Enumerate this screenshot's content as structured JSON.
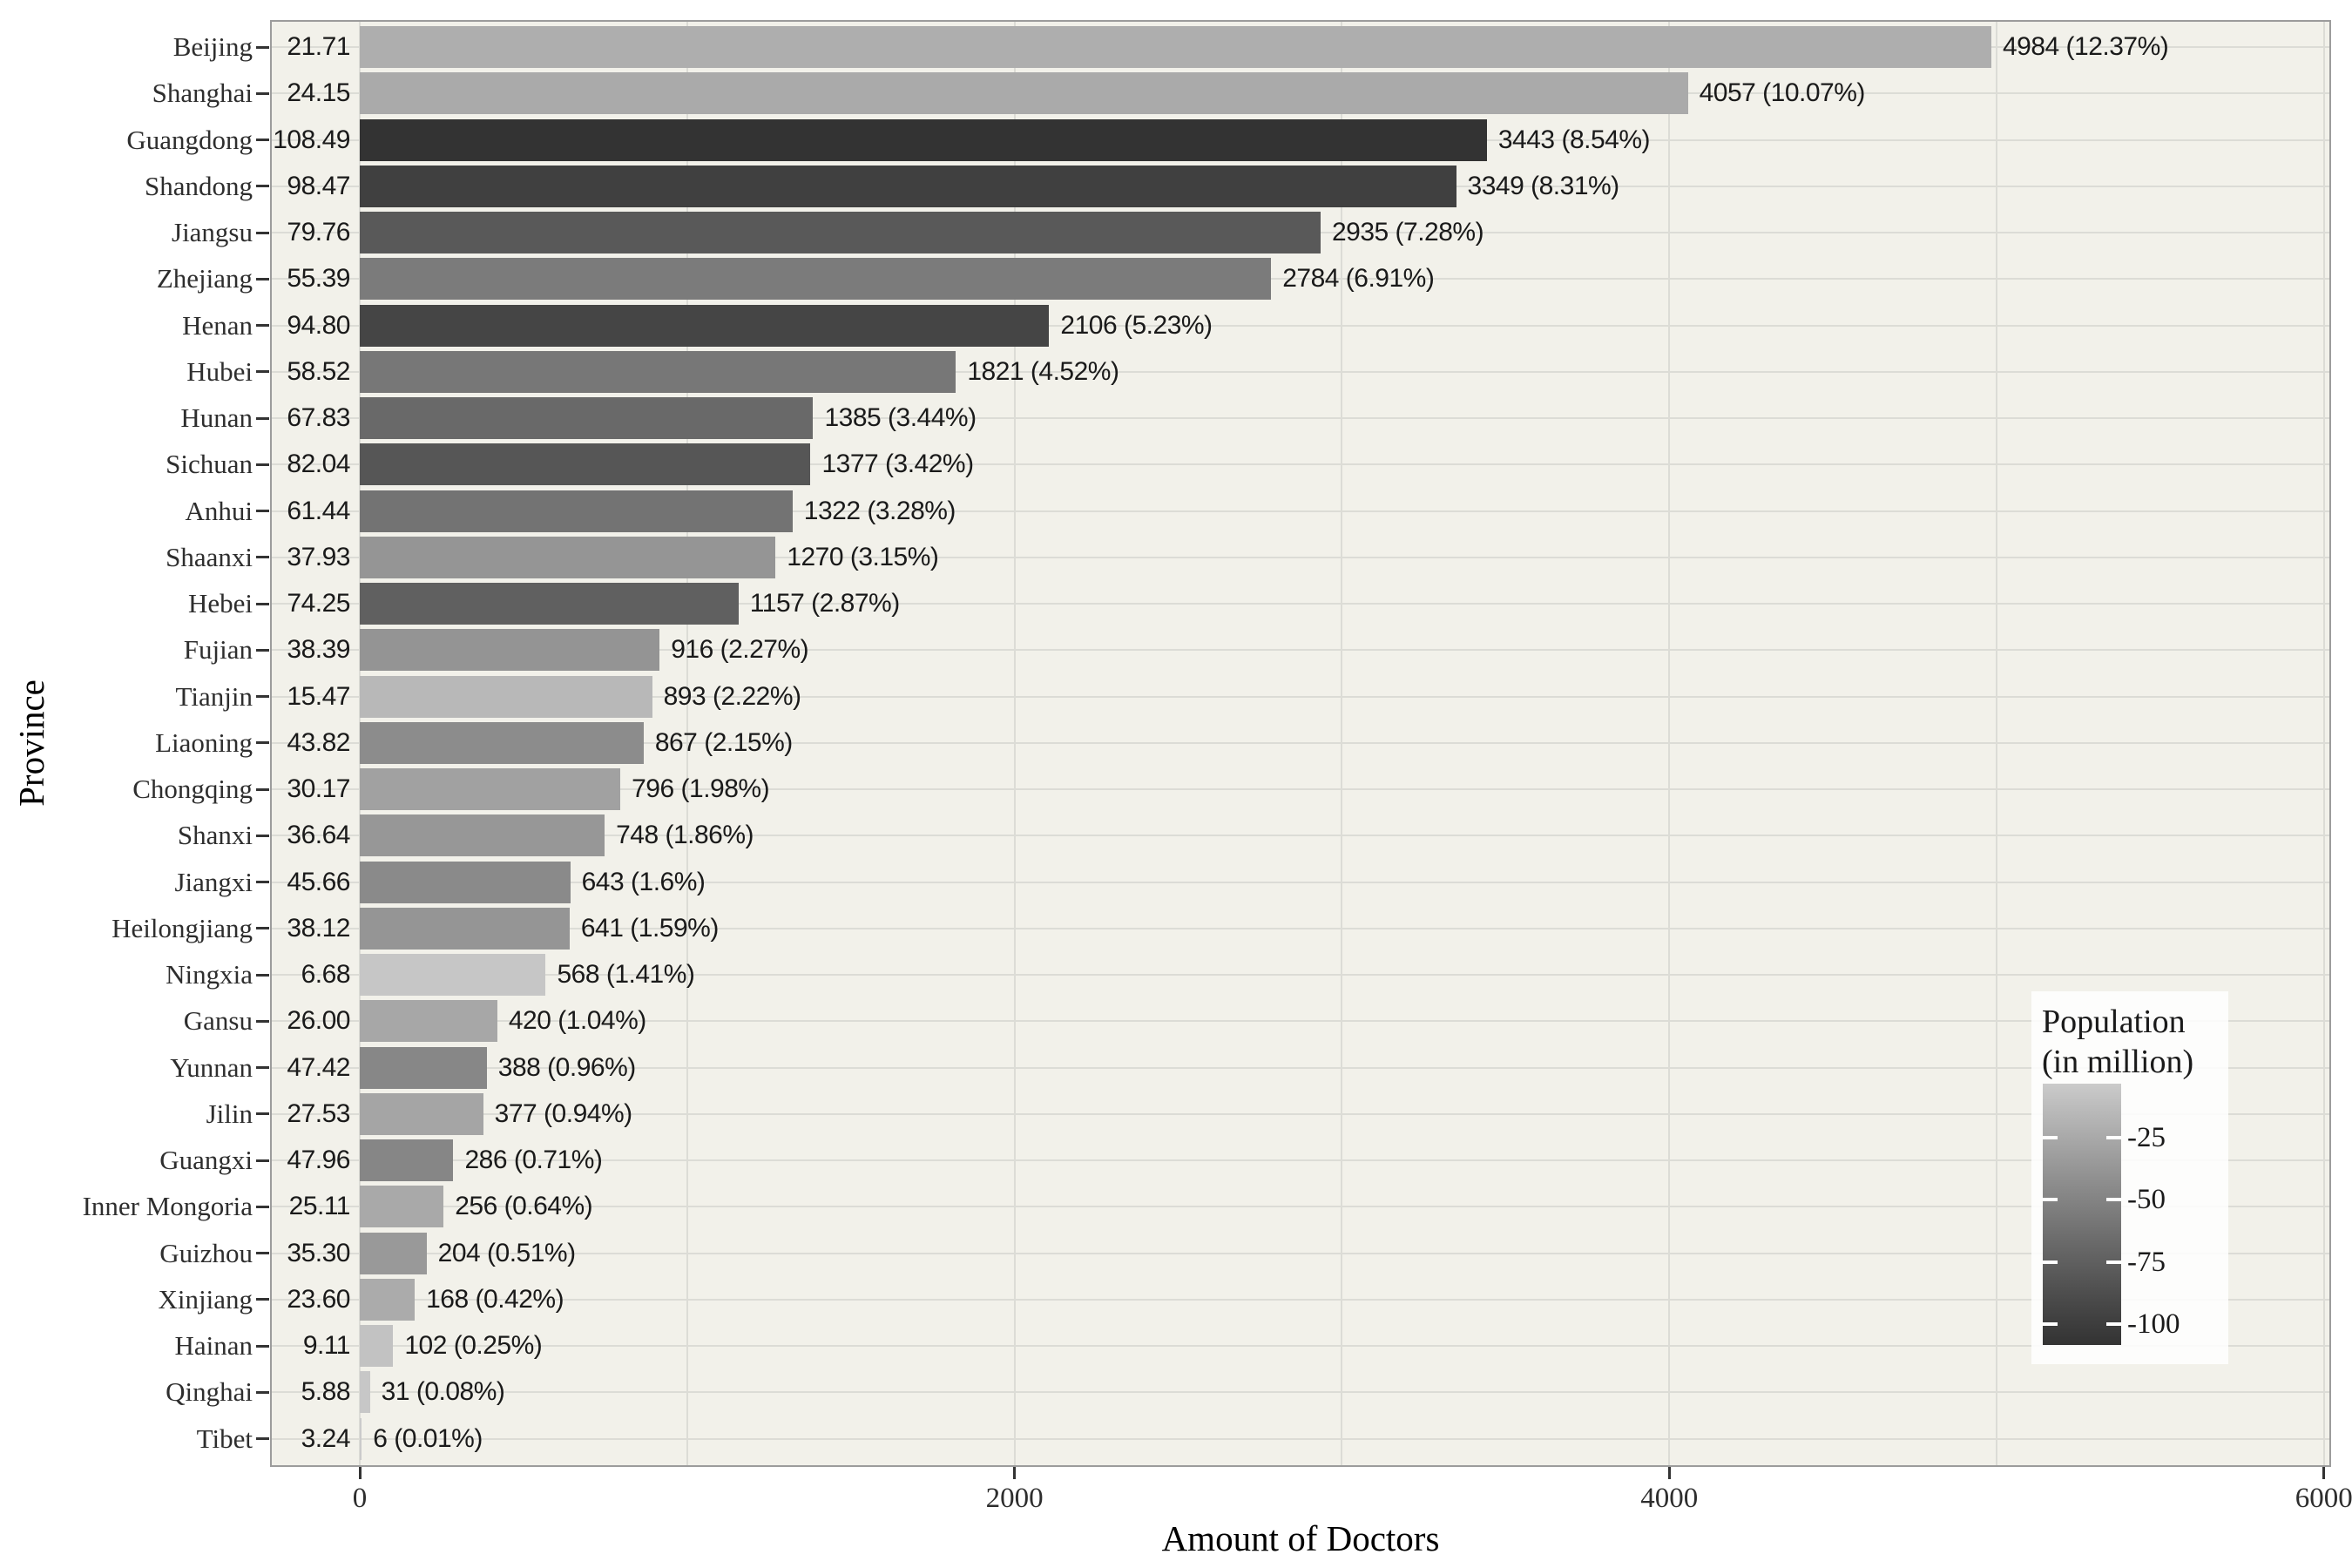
{
  "chart_data": {
    "type": "bar",
    "orientation": "horizontal",
    "title": "",
    "xlabel": "Amount of Doctors",
    "ylabel": "Province",
    "xlim": [
      0,
      6020
    ],
    "x_tick_values": [
      0,
      2000,
      4000,
      6000
    ],
    "x_tick_labels": [
      "0",
      "2000",
      "4000",
      "6000"
    ],
    "x_gridline_values": [
      0,
      1000,
      2000,
      3000,
      4000,
      5000,
      6000
    ],
    "grid": "on",
    "rows": [
      {
        "province": "Beijing",
        "population": 21.71,
        "population_label": "21.71",
        "doctors": 4984,
        "doctors_label": "4984 (12.37%)"
      },
      {
        "province": "Shanghai",
        "population": 24.15,
        "population_label": "24.15",
        "doctors": 4057,
        "doctors_label": "4057 (10.07%)"
      },
      {
        "province": "Guangdong",
        "population": 108.49,
        "population_label": "108.49",
        "doctors": 3443,
        "doctors_label": "3443 (8.54%)"
      },
      {
        "province": "Shandong",
        "population": 98.47,
        "population_label": "98.47",
        "doctors": 3349,
        "doctors_label": "3349 (8.31%)"
      },
      {
        "province": "Jiangsu",
        "population": 79.76,
        "population_label": "79.76",
        "doctors": 2935,
        "doctors_label": "2935 (7.28%)"
      },
      {
        "province": "Zhejiang",
        "population": 55.39,
        "population_label": "55.39",
        "doctors": 2784,
        "doctors_label": "2784 (6.91%)"
      },
      {
        "province": "Henan",
        "population": 94.8,
        "population_label": "94.80",
        "doctors": 2106,
        "doctors_label": "2106 (5.23%)"
      },
      {
        "province": "Hubei",
        "population": 58.52,
        "population_label": "58.52",
        "doctors": 1821,
        "doctors_label": "1821 (4.52%)"
      },
      {
        "province": "Hunan",
        "population": 67.83,
        "population_label": "67.83",
        "doctors": 1385,
        "doctors_label": "1385 (3.44%)"
      },
      {
        "province": "Sichuan",
        "population": 82.04,
        "population_label": "82.04",
        "doctors": 1377,
        "doctors_label": "1377 (3.42%)"
      },
      {
        "province": "Anhui",
        "population": 61.44,
        "population_label": "61.44",
        "doctors": 1322,
        "doctors_label": "1322 (3.28%)"
      },
      {
        "province": "Shaanxi",
        "population": 37.93,
        "population_label": "37.93",
        "doctors": 1270,
        "doctors_label": "1270 (3.15%)"
      },
      {
        "province": "Hebei",
        "population": 74.25,
        "population_label": "74.25",
        "doctors": 1157,
        "doctors_label": "1157 (2.87%)"
      },
      {
        "province": "Fujian",
        "population": 38.39,
        "population_label": "38.39",
        "doctors": 916,
        "doctors_label": "916 (2.27%)"
      },
      {
        "province": "Tianjin",
        "population": 15.47,
        "population_label": "15.47",
        "doctors": 893,
        "doctors_label": "893 (2.22%)"
      },
      {
        "province": "Liaoning",
        "population": 43.82,
        "population_label": "43.82",
        "doctors": 867,
        "doctors_label": "867 (2.15%)"
      },
      {
        "province": "Chongqing",
        "population": 30.17,
        "population_label": "30.17",
        "doctors": 796,
        "doctors_label": "796 (1.98%)"
      },
      {
        "province": "Shanxi",
        "population": 36.64,
        "population_label": "36.64",
        "doctors": 748,
        "doctors_label": "748 (1.86%)"
      },
      {
        "province": "Jiangxi",
        "population": 45.66,
        "population_label": "45.66",
        "doctors": 643,
        "doctors_label": "643 (1.6%)"
      },
      {
        "province": "Heilongjiang",
        "population": 38.12,
        "population_label": "38.12",
        "doctors": 641,
        "doctors_label": "641 (1.59%)"
      },
      {
        "province": "Ningxia",
        "population": 6.68,
        "population_label": "6.68",
        "doctors": 568,
        "doctors_label": "568 (1.41%)"
      },
      {
        "province": "Gansu",
        "population": 26.0,
        "population_label": "26.00",
        "doctors": 420,
        "doctors_label": "420 (1.04%)"
      },
      {
        "province": "Yunnan",
        "population": 47.42,
        "population_label": "47.42",
        "doctors": 388,
        "doctors_label": "388 (0.96%)"
      },
      {
        "province": "Jilin",
        "population": 27.53,
        "population_label": "27.53",
        "doctors": 377,
        "doctors_label": "377 (0.94%)"
      },
      {
        "province": "Guangxi",
        "population": 47.96,
        "population_label": "47.96",
        "doctors": 286,
        "doctors_label": "286 (0.71%)"
      },
      {
        "province": "Inner Mongoria",
        "population": 25.11,
        "population_label": "25.11",
        "doctors": 256,
        "doctors_label": "256 (0.64%)"
      },
      {
        "province": "Guizhou",
        "population": 35.3,
        "population_label": "35.30",
        "doctors": 204,
        "doctors_label": "204 (0.51%)"
      },
      {
        "province": "Xinjiang",
        "population": 23.6,
        "population_label": "23.60",
        "doctors": 168,
        "doctors_label": "168 (0.42%)"
      },
      {
        "province": "Hainan",
        "population": 9.11,
        "population_label": "9.11",
        "doctors": 102,
        "doctors_label": "102 (0.25%)"
      },
      {
        "province": "Qinghai",
        "population": 5.88,
        "population_label": "5.88",
        "doctors": 31,
        "doctors_label": "31 (0.08%)"
      },
      {
        "province": "Tibet",
        "population": 3.24,
        "population_label": "3.24",
        "doctors": 6,
        "doctors_label": "6 (0.01%)"
      }
    ],
    "legend": {
      "title_line1": "Population",
      "title_line2": "(in million)",
      "tick_labels": [
        "-25",
        "-50",
        "-75",
        "-100"
      ],
      "tick_values": [
        25,
        50,
        75,
        100
      ],
      "scale_min": 3.24,
      "scale_max": 108.49,
      "low_color": "#CBCBCB",
      "high_color": "#333333",
      "position": "inside-right"
    },
    "colors": {
      "page_bg": "#FFFFFF",
      "panel_bg": "#F2F1EA",
      "gridline": "#DCDCD6",
      "panel_border": "#9C9C9C",
      "axis_text": "#2E2E2E",
      "label_text": "#1A1A1A",
      "tick_mark": "#333333",
      "legend_bg": "rgba(255,255,255,0.85)"
    }
  }
}
